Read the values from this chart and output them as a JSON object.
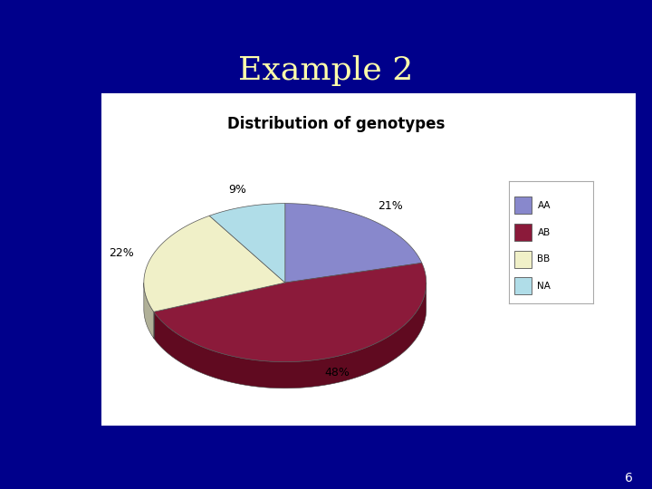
{
  "title": "Example 2",
  "chart_title": "Distribution of genotypes",
  "labels": [
    "AA",
    "AB",
    "BB",
    "NA"
  ],
  "values": [
    21,
    48,
    22,
    9
  ],
  "colors": [
    "#8888cc",
    "#8b1a3a",
    "#f0f0c8",
    "#b0dde8"
  ],
  "shadow_colors": [
    "#5560a0",
    "#600a20",
    "#b0b098",
    "#7aaab8"
  ],
  "pct_labels": [
    "21%",
    "48%",
    "22%",
    "9%"
  ],
  "background_color": "#00008B",
  "chart_bg": "#ffffff",
  "title_color": "#ffffaa",
  "title_fontsize": 26,
  "chart_title_fontsize": 12,
  "slide_number": "6",
  "startangle": 90,
  "order_clockwise": true
}
